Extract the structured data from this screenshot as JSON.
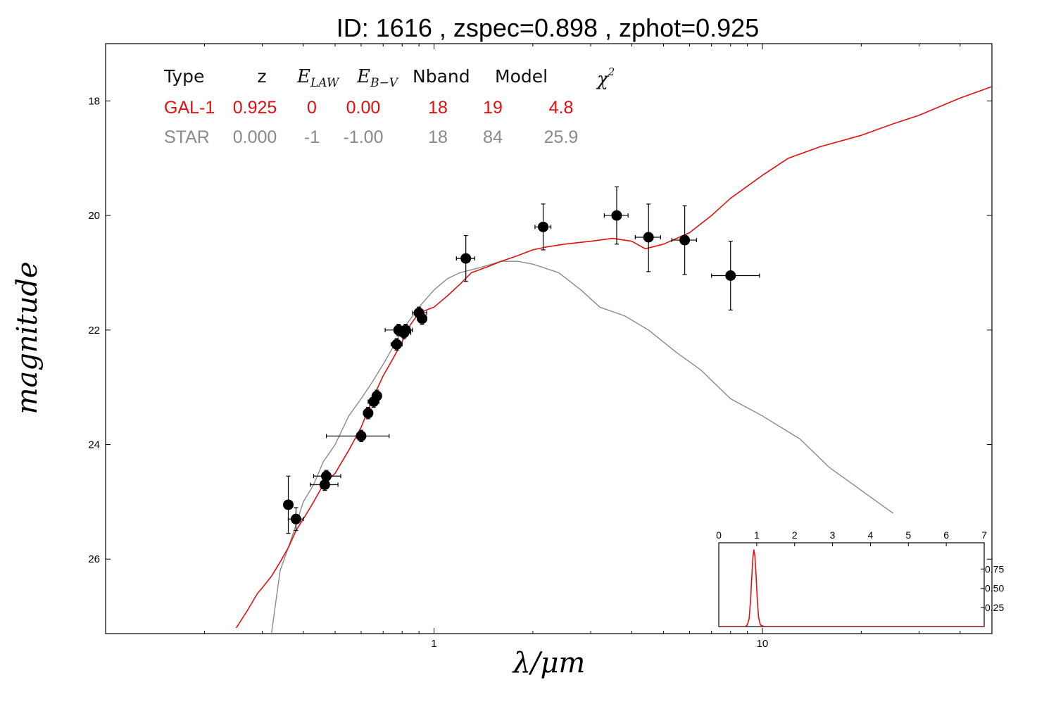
{
  "title": "ID:  1616  , zspec=0.898 , zphot=0.925",
  "colors": {
    "galaxy": "#e01010",
    "star": "#8a8a8a",
    "points": "#000000"
  },
  "table": {
    "headers": [
      "Type",
      "z",
      "E",
      "LAW",
      "E",
      "B−V",
      "Nband",
      "Model",
      "χ",
      "2"
    ],
    "rows": [
      {
        "color_key": "galaxy",
        "cells": [
          "GAL-1",
          "0.925",
          "0",
          "0.00",
          "18",
          "19",
          "4.8"
        ]
      },
      {
        "color_key": "star",
        "cells": [
          "STAR",
          "0.000",
          "-1",
          "-1.00",
          "18",
          "84",
          "25.9"
        ]
      }
    ]
  },
  "chart_data": [
    {
      "type": "scatter",
      "title": "ID:  1616  , zspec=0.898 , zphot=0.925",
      "xlabel": "λ/μm",
      "ylabel": "magnitude",
      "x_scale": "log",
      "xlim": [
        0.1,
        50
      ],
      "ylim": [
        27.3,
        17.0
      ],
      "x_ticks": [
        1,
        10
      ],
      "x_tick_labels": [
        "1",
        "10"
      ],
      "y_ticks": [
        18,
        20,
        22,
        24,
        26
      ],
      "y_tick_labels": [
        "18",
        "20",
        "22",
        "24",
        "26"
      ],
      "grid": false,
      "observations": [
        {
          "x": 0.36,
          "y": 25.05,
          "xerr": [
            0.355,
            0.365
          ],
          "yerr": [
            24.55,
            25.55
          ]
        },
        {
          "x": 0.38,
          "y": 25.3,
          "xerr": [
            0.36,
            0.4
          ],
          "yerr": [
            25.1,
            25.5
          ]
        },
        {
          "x": 0.47,
          "y": 24.55,
          "xerr": [
            0.43,
            0.52
          ],
          "yerr": [
            24.45,
            24.65
          ]
        },
        {
          "x": 0.465,
          "y": 24.7,
          "xerr": [
            0.42,
            0.51
          ],
          "yerr": [
            24.6,
            24.8
          ]
        },
        {
          "x": 0.6,
          "y": 23.85,
          "xerr": [
            0.47,
            0.73
          ],
          "yerr": [
            23.75,
            23.95
          ]
        },
        {
          "x": 0.63,
          "y": 23.45,
          "xerr": [
            0.61,
            0.65
          ],
          "yerr": [
            23.35,
            23.55
          ]
        },
        {
          "x": 0.655,
          "y": 23.25,
          "xerr": [
            0.63,
            0.68
          ],
          "yerr": [
            23.15,
            23.35
          ]
        },
        {
          "x": 0.67,
          "y": 23.15,
          "xerr": [
            0.65,
            0.69
          ],
          "yerr": [
            23.05,
            23.25
          ]
        },
        {
          "x": 0.77,
          "y": 22.25,
          "xerr": [
            0.74,
            0.8
          ],
          "yerr": [
            22.15,
            22.35
          ]
        },
        {
          "x": 0.78,
          "y": 22.0,
          "xerr": [
            0.71,
            0.86
          ],
          "yerr": [
            21.9,
            22.1
          ]
        },
        {
          "x": 0.81,
          "y": 22.05,
          "xerr": [
            0.77,
            0.85
          ],
          "yerr": [
            21.95,
            22.15
          ]
        },
        {
          "x": 0.82,
          "y": 22.0,
          "xerr": [
            0.79,
            0.86
          ],
          "yerr": [
            21.9,
            22.1
          ]
        },
        {
          "x": 0.9,
          "y": 21.7,
          "xerr": [
            0.86,
            0.95
          ],
          "yerr": [
            21.6,
            21.8
          ]
        },
        {
          "x": 0.92,
          "y": 21.8,
          "xerr": [
            0.89,
            0.95
          ],
          "yerr": [
            21.7,
            21.9
          ]
        },
        {
          "x": 1.25,
          "y": 20.75,
          "xerr": [
            1.17,
            1.33
          ],
          "yerr": [
            20.35,
            21.15
          ]
        },
        {
          "x": 2.15,
          "y": 20.2,
          "xerr": [
            2.03,
            2.27
          ],
          "yerr": [
            19.8,
            20.6
          ]
        },
        {
          "x": 3.6,
          "y": 20.0,
          "xerr": [
            3.3,
            3.9
          ],
          "yerr": [
            19.5,
            20.5
          ]
        },
        {
          "x": 4.5,
          "y": 20.38,
          "xerr": [
            4.1,
            4.9
          ],
          "yerr": [
            19.8,
            20.98
          ]
        },
        {
          "x": 5.8,
          "y": 20.43,
          "xerr": [
            5.3,
            6.3
          ],
          "yerr": [
            19.83,
            21.03
          ]
        },
        {
          "x": 8.0,
          "y": 21.05,
          "xerr": [
            7.0,
            9.8
          ],
          "yerr": [
            20.45,
            21.65
          ]
        }
      ],
      "series": [
        {
          "name": "GAL-1",
          "color_key": "galaxy",
          "x": [
            0.25,
            0.27,
            0.29,
            0.3,
            0.32,
            0.34,
            0.36,
            0.38,
            0.4,
            0.43,
            0.46,
            0.5,
            0.55,
            0.6,
            0.65,
            0.7,
            0.75,
            0.8,
            0.85,
            0.9,
            1.0,
            1.1,
            1.2,
            1.3,
            1.45,
            1.6,
            1.8,
            2.0,
            2.2,
            2.5,
            3.0,
            3.5,
            4.0,
            4.4,
            5.0,
            6.0,
            7.0,
            8.0,
            10.0,
            12.0,
            15.0,
            20.0,
            25.0,
            30.0,
            40.0,
            50.0
          ],
          "y": [
            27.2,
            26.9,
            26.6,
            26.5,
            26.3,
            26.05,
            25.8,
            25.5,
            25.3,
            25.0,
            24.7,
            24.5,
            24.1,
            23.7,
            23.2,
            22.8,
            22.5,
            22.2,
            21.9,
            21.7,
            21.6,
            21.4,
            21.2,
            21.0,
            20.9,
            20.8,
            20.7,
            20.6,
            20.55,
            20.5,
            20.45,
            20.4,
            20.45,
            20.58,
            20.5,
            20.3,
            20.0,
            19.7,
            19.3,
            19.0,
            18.8,
            18.6,
            18.4,
            18.25,
            17.95,
            17.75
          ]
        },
        {
          "name": "STAR",
          "color_key": "star",
          "x": [
            0.32,
            0.34,
            0.36,
            0.38,
            0.4,
            0.43,
            0.46,
            0.5,
            0.55,
            0.6,
            0.65,
            0.7,
            0.75,
            0.8,
            0.85,
            0.9,
            1.0,
            1.1,
            1.2,
            1.4,
            1.6,
            1.8,
            2.0,
            2.4,
            2.8,
            3.2,
            3.8,
            4.5,
            5.5,
            6.5,
            8.0,
            10.0,
            13.0,
            16.0,
            20.0,
            25.0
          ],
          "y": [
            27.3,
            26.2,
            25.8,
            25.4,
            25.0,
            24.7,
            24.3,
            24.0,
            23.5,
            23.2,
            22.9,
            22.6,
            22.3,
            22.0,
            21.8,
            21.6,
            21.3,
            21.1,
            21.0,
            20.9,
            20.8,
            20.8,
            20.85,
            21.0,
            21.3,
            21.6,
            21.75,
            22.0,
            22.4,
            22.7,
            23.2,
            23.5,
            23.9,
            24.4,
            24.8,
            25.2
          ]
        }
      ]
    },
    {
      "type": "line",
      "title": "",
      "xlabel": "",
      "ylabel": "",
      "xlim": [
        0,
        7
      ],
      "ylim": [
        0,
        1
      ],
      "x_ticks": [
        0,
        1,
        2,
        3,
        4,
        5,
        6,
        7
      ],
      "x_tick_labels": [
        "0",
        "1",
        "2",
        "3",
        "4",
        "5",
        "6",
        "7"
      ],
      "y_ticks": [
        0.25,
        0.5,
        0.75
      ],
      "y_tick_labels": [
        "0.25",
        "0.50",
        "0.75"
      ],
      "grid": false,
      "series": [
        {
          "name": "",
          "color_key": "galaxy",
          "x": [
            0,
            0.7,
            0.75,
            0.8,
            0.84,
            0.87,
            0.9,
            0.925,
            0.95,
            0.98,
            1.01,
            1.05,
            1.1,
            1.2,
            7.0
          ],
          "y": [
            0,
            0,
            0.02,
            0.1,
            0.35,
            0.65,
            0.9,
            1.0,
            0.93,
            0.7,
            0.4,
            0.12,
            0.02,
            0,
            0
          ]
        }
      ]
    }
  ]
}
